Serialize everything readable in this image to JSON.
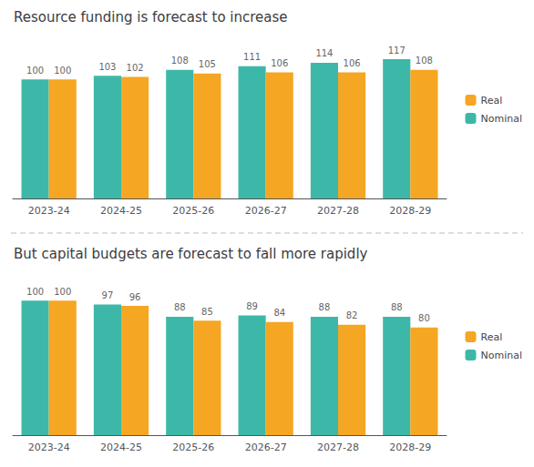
{
  "chart_data": [
    {
      "type": "bar",
      "title": "Resource funding is forecast to increase",
      "categories": [
        "2023-24",
        "2024-25",
        "2025-26",
        "2026-27",
        "2027-28",
        "2028-29"
      ],
      "series": [
        {
          "name": "Nominal",
          "color": "#3db8a8",
          "values": [
            100,
            103,
            108,
            111,
            114,
            117
          ]
        },
        {
          "name": "Real",
          "color": "#f5a623",
          "values": [
            100,
            102,
            105,
            106,
            106,
            108
          ]
        }
      ],
      "ylim": [
        0,
        130
      ],
      "data_labels": true,
      "tick_labels": "x",
      "grid": false,
      "legend": "right"
    },
    {
      "type": "bar",
      "title": "But capital budgets are forecast to fall more rapidly",
      "categories": [
        "2023-24",
        "2024-25",
        "2025-26",
        "2026-27",
        "2027-28",
        "2028-29"
      ],
      "series": [
        {
          "name": "Nominal",
          "color": "#3db8a8",
          "values": [
            100,
            97,
            88,
            89,
            88,
            88
          ]
        },
        {
          "name": "Real",
          "color": "#f5a623",
          "values": [
            100,
            96,
            85,
            84,
            82,
            80
          ]
        }
      ],
      "ylim": [
        0,
        115
      ],
      "data_labels": true,
      "tick_labels": "x",
      "grid": false,
      "legend": "right"
    }
  ]
}
